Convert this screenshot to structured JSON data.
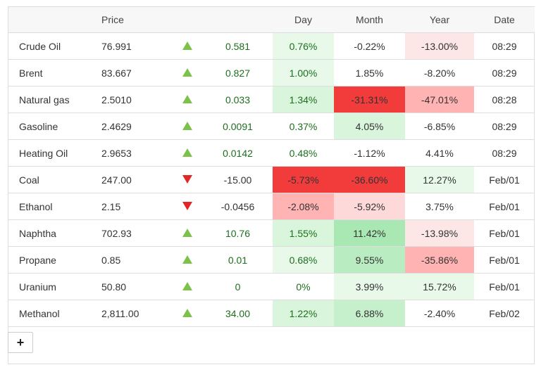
{
  "headers": {
    "name": "",
    "price": "Price",
    "arrow": "",
    "change": "",
    "day": "Day",
    "month": "Month",
    "year": "Year",
    "date": "Date"
  },
  "rows": [
    {
      "name": "Crude Oil",
      "price": "76.991",
      "dir": "up",
      "change": "0.581",
      "day": "0.76%",
      "month": "-0.22%",
      "year": "-13.00%",
      "date": "08:29",
      "day_bg": "#e8f9ea",
      "month_bg": "#ffffff",
      "year_bg": "#fde6e6"
    },
    {
      "name": "Brent",
      "price": "83.667",
      "dir": "up",
      "change": "0.827",
      "day": "1.00%",
      "month": "1.85%",
      "year": "-8.20%",
      "date": "08:29",
      "day_bg": "#e8f9ea",
      "month_bg": "#ffffff",
      "year_bg": "#ffffff"
    },
    {
      "name": "Natural gas",
      "price": "2.5010",
      "dir": "up",
      "change": "0.033",
      "day": "1.34%",
      "month": "-31.31%",
      "year": "-47.01%",
      "date": "08:28",
      "day_bg": "#d9f6dd",
      "month_bg": "#f23c3c",
      "year_bg": "#ffb3b3"
    },
    {
      "name": "Gasoline",
      "price": "2.4629",
      "dir": "up",
      "change": "0.0091",
      "day": "0.37%",
      "month": "4.05%",
      "year": "-6.85%",
      "date": "08:29",
      "day_bg": "#ffffff",
      "month_bg": "#d9f6dd",
      "year_bg": "#ffffff"
    },
    {
      "name": "Heating Oil",
      "price": "2.9653",
      "dir": "up",
      "change": "0.0142",
      "day": "0.48%",
      "month": "-1.12%",
      "year": "4.41%",
      "date": "08:29",
      "day_bg": "#ffffff",
      "month_bg": "#ffffff",
      "year_bg": "#ffffff"
    },
    {
      "name": "Coal",
      "price": "247.00",
      "dir": "down",
      "change": "-15.00",
      "day": "-5.73%",
      "month": "-36.60%",
      "year": "12.27%",
      "date": "Feb/01",
      "day_bg": "#f23c3c",
      "month_bg": "#f23c3c",
      "year_bg": "#e8f9ea"
    },
    {
      "name": "Ethanol",
      "price": "2.15",
      "dir": "down",
      "change": "-0.0456",
      "day": "-2.08%",
      "month": "-5.92%",
      "year": "3.75%",
      "date": "Feb/01",
      "day_bg": "#ffb3b3",
      "month_bg": "#fdd9d9",
      "year_bg": "#ffffff"
    },
    {
      "name": "Naphtha",
      "price": "702.93",
      "dir": "up",
      "change": "10.76",
      "day": "1.55%",
      "month": "11.42%",
      "year": "-13.98%",
      "date": "Feb/01",
      "day_bg": "#d9f6dd",
      "month_bg": "#a9e8b3",
      "year_bg": "#fde6e6"
    },
    {
      "name": "Propane",
      "price": "0.85",
      "dir": "up",
      "change": "0.01",
      "day": "0.68%",
      "month": "9.55%",
      "year": "-35.86%",
      "date": "Feb/01",
      "day_bg": "#e8f9ea",
      "month_bg": "#b9edc1",
      "year_bg": "#ffb3b3"
    },
    {
      "name": "Uranium",
      "price": "50.80",
      "dir": "up",
      "change": "0",
      "day": "0%",
      "month": "3.99%",
      "year": "15.72%",
      "date": "Feb/01",
      "day_bg": "#ffffff",
      "month_bg": "#e8f9ea",
      "year_bg": "#e8f9ea"
    },
    {
      "name": "Methanol",
      "price": "2,811.00",
      "dir": "up",
      "change": "34.00",
      "day": "1.22%",
      "month": "6.88%",
      "year": "-2.40%",
      "date": "Feb/02",
      "day_bg": "#d9f6dd",
      "month_bg": "#c6f0cc",
      "year_bg": "#ffffff"
    }
  ],
  "add_button": {
    "label": "+"
  },
  "colors": {
    "up_arrow": "#7cc24a",
    "down_arrow": "#e22626",
    "positive_change": "#1c6f1c"
  }
}
